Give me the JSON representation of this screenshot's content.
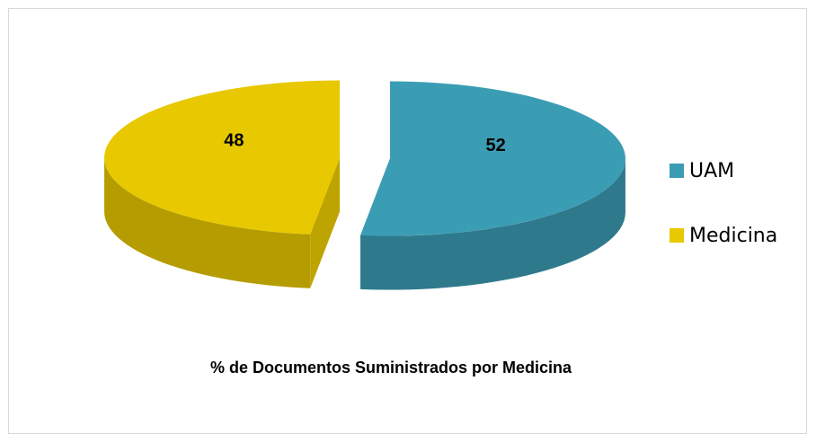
{
  "chart_data": {
    "type": "pie",
    "title": "% de Documentos Suministrados por Medicina",
    "categories": [
      "UAM",
      "Medicina"
    ],
    "values": [
      52,
      48
    ],
    "colors": [
      "#3b9db3",
      "#e8c800"
    ],
    "legend": "right"
  }
}
